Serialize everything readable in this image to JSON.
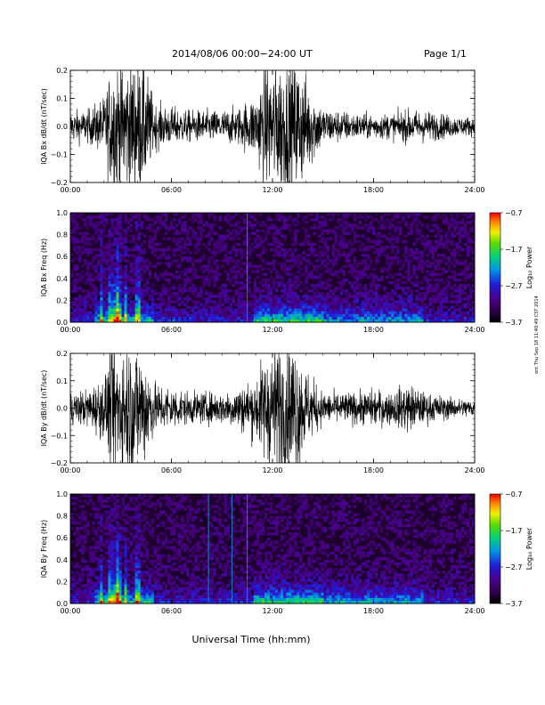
{
  "header": {
    "title": "2014/08/06  00:00−24:00 UT",
    "page": "Page 1/1"
  },
  "footer_xlabel": "Universal Time (hh:mm)",
  "side_note": "ont Thu Sep 18 11:40:49 CST 2014",
  "chart_data": [
    {
      "type": "line",
      "ylabel": "IQA Bx dB/dt (nT/sec)",
      "xlim": [
        0,
        24
      ],
      "ylim": [
        -0.2,
        0.2
      ],
      "x_ticks": [
        "00:00",
        "06:00",
        "12:00",
        "18:00",
        "24:00"
      ],
      "y_ticks": [
        "−0.2",
        "−0.1",
        "0.0",
        "0.1",
        "0.2"
      ],
      "series": [
        {
          "envelope_hours": [
            0,
            1,
            2,
            2.5,
            3,
            3.5,
            4,
            4.5,
            5,
            6,
            7,
            8,
            9,
            10,
            11,
            11.5,
            12,
            12.5,
            13,
            13.5,
            14,
            15,
            16,
            17,
            18,
            19,
            20,
            21,
            22,
            23,
            24
          ],
          "envelope_amplitude": [
            0.05,
            0.05,
            0.09,
            0.21,
            0.21,
            0.21,
            0.21,
            0.18,
            0.07,
            0.06,
            0.05,
            0.05,
            0.05,
            0.06,
            0.1,
            0.18,
            0.21,
            0.21,
            0.21,
            0.21,
            0.15,
            0.06,
            0.05,
            0.04,
            0.04,
            0.04,
            0.05,
            0.05,
            0.04,
            0.03,
            0.03
          ]
        }
      ]
    },
    {
      "type": "heatmap",
      "ylabel": "IQA Bx Freq (Hz)",
      "xlim": [
        0,
        24
      ],
      "ylim": [
        0,
        1.0
      ],
      "x_ticks": [
        "00:00",
        "06:00",
        "12:00",
        "18:00",
        "24:00"
      ],
      "y_ticks": [
        "0.0",
        "0.2",
        "0.4",
        "0.6",
        "0.8",
        "1.0"
      ],
      "colorbar": {
        "label": "Log₁₀ Power",
        "range": [
          -3.7,
          -0.7
        ],
        "ticks": [
          "−0.7",
          "−1.7",
          "−2.7",
          "−3.7"
        ]
      },
      "bursts_hours": [
        1.8,
        2.4,
        2.7,
        2.9,
        3.3,
        3.9,
        4.1
      ],
      "line_hours": [
        10.5
      ]
    },
    {
      "type": "line",
      "ylabel": "IQA By dB/dt (nT/sec)",
      "xlim": [
        0,
        24
      ],
      "ylim": [
        -0.2,
        0.2
      ],
      "x_ticks": [
        "00:00",
        "06:00",
        "12:00",
        "18:00",
        "24:00"
      ],
      "y_ticks": [
        "−0.2",
        "−0.1",
        "0.0",
        "0.1",
        "0.2"
      ],
      "series": [
        {
          "envelope_hours": [
            0,
            1,
            2,
            2.5,
            3,
            3.5,
            4,
            4.5,
            5,
            6,
            7,
            8,
            9,
            10,
            11,
            11.5,
            12,
            12.5,
            13,
            13.5,
            14,
            15,
            16,
            17,
            18,
            19,
            20,
            21,
            22,
            23,
            24
          ],
          "envelope_amplitude": [
            0.05,
            0.06,
            0.1,
            0.21,
            0.21,
            0.21,
            0.21,
            0.17,
            0.08,
            0.07,
            0.05,
            0.05,
            0.05,
            0.07,
            0.1,
            0.17,
            0.21,
            0.21,
            0.21,
            0.21,
            0.12,
            0.05,
            0.05,
            0.05,
            0.06,
            0.05,
            0.08,
            0.05,
            0.04,
            0.03,
            0.03
          ]
        }
      ]
    },
    {
      "type": "heatmap",
      "ylabel": "IQA By Freq (Hz)",
      "xlim": [
        0,
        24
      ],
      "ylim": [
        0,
        1.0
      ],
      "x_ticks": [
        "00:00",
        "06:00",
        "12:00",
        "18:00",
        "24:00"
      ],
      "y_ticks": [
        "0.0",
        "0.2",
        "0.4",
        "0.6",
        "0.8",
        "1.0"
      ],
      "colorbar": {
        "label": "Log₁₀ Power",
        "range": [
          -3.7,
          -0.7
        ],
        "ticks": [
          "−0.7",
          "−1.7",
          "−2.7",
          "−3.7"
        ]
      },
      "bursts_hours": [
        1.8,
        2.4,
        2.7,
        2.9,
        3.3,
        3.9,
        4.1
      ],
      "line_hours": [
        8.2,
        9.6,
        10.5
      ]
    }
  ]
}
